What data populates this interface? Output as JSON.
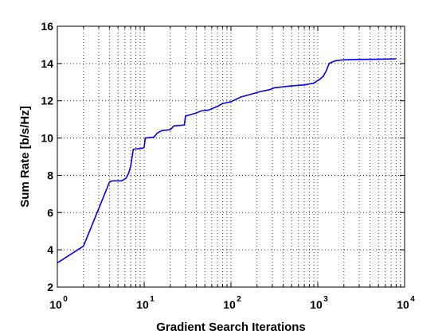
{
  "chart_data": {
    "type": "line",
    "title": "",
    "xlabel": "Gradient Search Iterations",
    "ylabel": "Sum Rate [b/s/Hz]",
    "xscale": "log",
    "xlim": [
      1,
      10000
    ],
    "ylim": [
      2,
      16
    ],
    "grid": true,
    "x_ticks": [
      {
        "base": "10",
        "exp": "0",
        "value": 1
      },
      {
        "base": "10",
        "exp": "1",
        "value": 10
      },
      {
        "base": "10",
        "exp": "2",
        "value": 100
      },
      {
        "base": "10",
        "exp": "3",
        "value": 1000
      },
      {
        "base": "10",
        "exp": "4",
        "value": 10000
      }
    ],
    "y_ticks": [
      "2",
      "4",
      "6",
      "8",
      "10",
      "12",
      "14",
      "16"
    ],
    "series": [
      {
        "color": "#0000ff",
        "x": [
          1,
          2,
          4,
          4.3,
          5.5,
          6.2,
          6.6,
          7,
          7.5,
          9.5,
          10,
          10.3,
          13,
          14,
          16,
          20,
          22,
          29,
          30,
          31,
          37,
          40,
          45,
          55,
          70,
          80,
          100,
          130,
          170,
          220,
          280,
          320,
          500,
          700,
          900,
          1050,
          1150,
          1250,
          1350,
          1500,
          1600,
          2000,
          3000,
          5000,
          8000
        ],
        "y": [
          3.3,
          4.2,
          7.65,
          7.7,
          7.7,
          7.85,
          8.1,
          8.5,
          9.4,
          9.45,
          9.5,
          10.0,
          10.05,
          10.25,
          10.4,
          10.45,
          10.65,
          10.7,
          11.2,
          11.2,
          11.3,
          11.35,
          11.45,
          11.5,
          11.7,
          11.85,
          11.95,
          12.2,
          12.35,
          12.5,
          12.6,
          12.7,
          12.8,
          12.85,
          12.95,
          13.15,
          13.3,
          13.6,
          14.0,
          14.1,
          14.15,
          14.2,
          14.22,
          14.23,
          14.25
        ]
      }
    ]
  }
}
